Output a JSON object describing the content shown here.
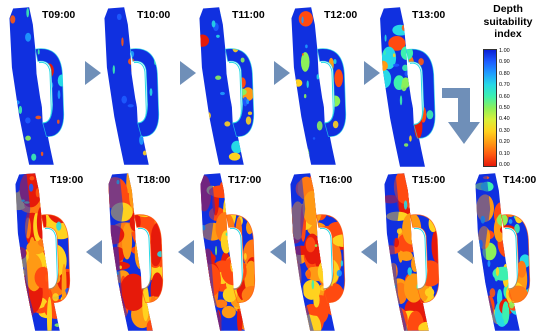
{
  "panels": [
    {
      "label": "T09:00",
      "stage": 0.05
    },
    {
      "label": "T10:00",
      "stage": 0.02
    },
    {
      "label": "T11:00",
      "stage": 0.1
    },
    {
      "label": "T12:00",
      "stage": 0.15
    },
    {
      "label": "T13:00",
      "stage": 0.3
    },
    {
      "label": "T14:00",
      "stage": 0.55
    },
    {
      "label": "T15:00",
      "stage": 0.7
    },
    {
      "label": "T16:00",
      "stage": 0.82
    },
    {
      "label": "T17:00",
      "stage": 0.88
    },
    {
      "label": "T18:00",
      "stage": 0.95
    },
    {
      "label": "T19:00",
      "stage": 1.0
    }
  ],
  "legend": {
    "title_lines": [
      "Depth",
      "suitability",
      "index"
    ],
    "ticks": [
      "1.00",
      "0.90",
      "0.80",
      "0.70",
      "0.60",
      "0.50",
      "0.40",
      "0.30",
      "0.20",
      "0.10",
      "0.00"
    ],
    "colors": [
      "#0a1fd6",
      "#1e5cff",
      "#1f9cff",
      "#26d9e6",
      "#3df0b0",
      "#8cf05a",
      "#d9f03a",
      "#ffd21f",
      "#ff9a14",
      "#ff5a10",
      "#e61a0a"
    ]
  },
  "colors": {
    "river": "#1030e0",
    "arrow": "#6f8fb8"
  }
}
